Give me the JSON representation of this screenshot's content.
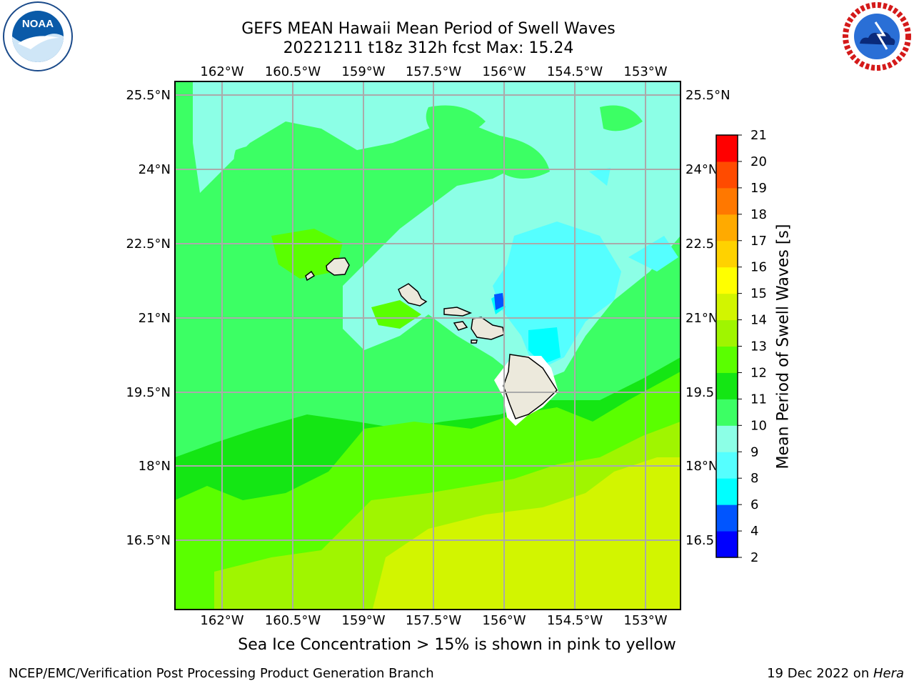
{
  "title_line1": "GEFS MEAN Hawaii Mean Period of Swell Waves",
  "title_line2": "20221211 t18z 312h fcst   Max: 15.24",
  "lon_ticks": [
    "162°W",
    "160.5°W",
    "159°W",
    "157.5°W",
    "156°W",
    "154.5°W",
    "153°W"
  ],
  "lat_ticks": [
    "25.5°N",
    "24°N",
    "22.5°N",
    "21°N",
    "19.5°N",
    "18°N",
    "16.5°N"
  ],
  "colorbar": {
    "label": "Mean Period of Swell Waves [s]",
    "ticks": [
      "2",
      "4",
      "6",
      "8",
      "9",
      "10",
      "11",
      "12",
      "13",
      "14",
      "15",
      "16",
      "17",
      "18",
      "19",
      "20",
      "21"
    ],
    "colors": [
      "#0000ff",
      "#0055ff",
      "#00ffff",
      "#55ffff",
      "#8cffe6",
      "#3cff64",
      "#14e614",
      "#5aff00",
      "#a0f500",
      "#d2f500",
      "#ffff00",
      "#ffd200",
      "#ffaa00",
      "#ff7800",
      "#ff4b00",
      "#ff0000"
    ]
  },
  "caption": "Sea Ice Concentration > 15% is shown in pink to yellow",
  "footer_left": "NCEP/EMC/Verification Post Processing Product Generation Branch",
  "footer_right_date": "19 Dec 2022 on ",
  "footer_right_host": "Hera",
  "logos": {
    "left": "NOAA",
    "right_text": "NATIONAL WEATHER SERVICE"
  }
}
